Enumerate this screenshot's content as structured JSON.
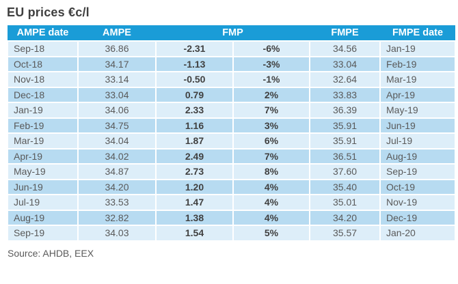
{
  "chart_data": {
    "type": "table",
    "title": "EU prices €c/l",
    "columns": [
      "AMPE date",
      "AMPE",
      "FMP",
      "FMPE",
      "FMPE date"
    ],
    "fmp_header_spans_two_columns": true,
    "rows": [
      [
        "Sep-18",
        "36.86",
        "-2.31",
        "-6%",
        "34.56",
        "Jan-19"
      ],
      [
        "Oct-18",
        "34.17",
        "-1.13",
        "-3%",
        "33.04",
        "Feb-19"
      ],
      [
        "Nov-18",
        "33.14",
        "-0.50",
        "-1%",
        "32.64",
        "Mar-19"
      ],
      [
        "Dec-18",
        "33.04",
        "0.79",
        "2%",
        "33.83",
        "Apr-19"
      ],
      [
        "Jan-19",
        "34.06",
        "2.33",
        "7%",
        "36.39",
        "May-19"
      ],
      [
        "Feb-19",
        "34.75",
        "1.16",
        "3%",
        "35.91",
        "Jun-19"
      ],
      [
        "Mar-19",
        "34.04",
        "1.87",
        "6%",
        "35.91",
        "Jul-19"
      ],
      [
        "Apr-19",
        "34.02",
        "2.49",
        "7%",
        "36.51",
        "Aug-19"
      ],
      [
        "May-19",
        "34.87",
        "2.73",
        "8%",
        "37.60",
        "Sep-19"
      ],
      [
        "Jun-19",
        "34.20",
        "1.20",
        "4%",
        "35.40",
        "Oct-19"
      ],
      [
        "Jul-19",
        "33.53",
        "1.47",
        "4%",
        "35.01",
        "Nov-19"
      ],
      [
        "Aug-19",
        "32.82",
        "1.38",
        "4%",
        "34.20",
        "Dec-19"
      ],
      [
        "Sep-19",
        "34.03",
        "1.54",
        "5%",
        "35.57",
        "Jan-20"
      ]
    ],
    "source": "Source: AHDB, EEX"
  },
  "colors": {
    "header_bg": "#1a9cd7",
    "row_light": "#ddeef9",
    "row_dark": "#b7dbf1"
  }
}
